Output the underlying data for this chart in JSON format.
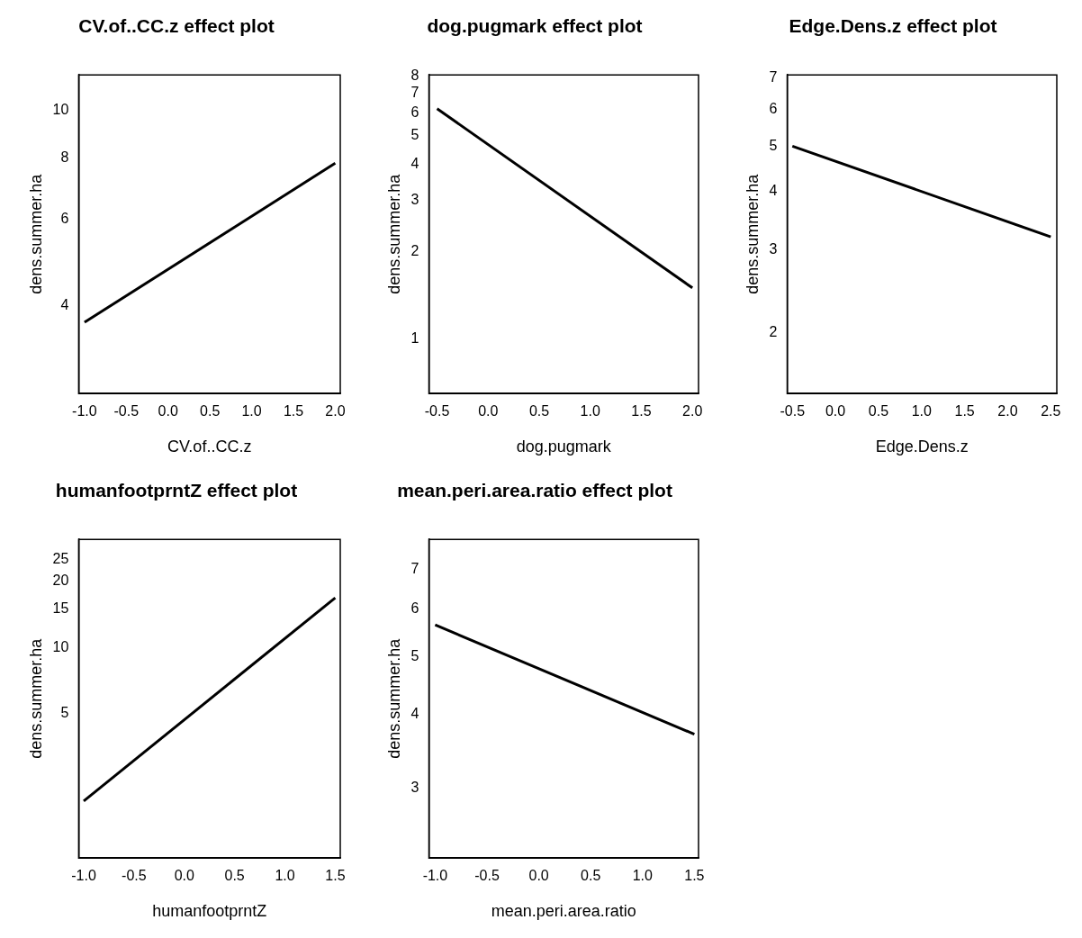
{
  "chart_data": [
    {
      "type": "line",
      "title": "CV.of..CC.z effect plot",
      "xlabel": "CV.of..CC.z",
      "ylabel": "dens.summer.ha",
      "log": "y",
      "marker": "none",
      "x": [
        -1,
        2
      ],
      "values": [
        3.7,
        7.8
      ],
      "color": "#000000",
      "xlim": [
        -1.07,
        2.06
      ],
      "ylim": [
        2.65,
        11.8
      ],
      "xticks": [
        {
          "value": -1,
          "label": "-1.0"
        },
        -0.5,
        {
          "value": 0,
          "label": "0.0"
        },
        0.5,
        {
          "value": 1,
          "label": "1.0"
        },
        1.5,
        {
          "value": 2,
          "label": "2.0"
        }
      ],
      "yticks": [
        4,
        6,
        8,
        10
      ]
    },
    {
      "type": "line",
      "title": "dog.pugmark effect plot",
      "xlabel": "dog.pugmark",
      "ylabel": "dens.summer.ha",
      "log": "y",
      "marker": "none",
      "x": [
        -0.5,
        2
      ],
      "values": [
        6.2,
        1.5
      ],
      "color": "#000000",
      "xlim": [
        -0.58,
        2.06
      ],
      "ylim": [
        0.65,
        8.1
      ],
      "xticks": [
        -0.5,
        {
          "value": 0,
          "label": "0.0"
        },
        0.5,
        {
          "value": 1,
          "label": "1.0"
        },
        1.5,
        {
          "value": 2,
          "label": "2.0"
        }
      ],
      "yticks": [
        1,
        2,
        3,
        4,
        5,
        6,
        7,
        8
      ]
    },
    {
      "type": "line",
      "title": "Edge.Dens.z effect plot",
      "xlabel": "Edge.Dens.z",
      "ylabel": "dens.summer.ha",
      "log": "y",
      "marker": "none",
      "x": [
        -0.5,
        2.5
      ],
      "values": [
        5.0,
        3.2
      ],
      "color": "#000000",
      "xlim": [
        -0.56,
        2.57
      ],
      "ylim": [
        1.48,
        7.1
      ],
      "xticks": [
        -0.5,
        {
          "value": 0,
          "label": "0.0"
        },
        0.5,
        {
          "value": 1,
          "label": "1.0"
        },
        1.5,
        {
          "value": 2,
          "label": "2.0"
        },
        2.5
      ],
      "yticks": [
        2,
        3,
        4,
        5,
        6,
        7
      ]
    },
    {
      "type": "line",
      "title": "humanfootprntZ effect plot",
      "xlabel": "humanfootprntZ",
      "ylabel": "dens.summer.ha",
      "log": "y",
      "marker": "none",
      "x": [
        -1,
        1.5
      ],
      "values": [
        2.0,
        16.8
      ],
      "color": "#000000",
      "xlim": [
        -1.05,
        1.55
      ],
      "ylim": [
        1.1,
        31
      ],
      "xticks": [
        {
          "value": -1,
          "label": "-1.0"
        },
        -0.5,
        {
          "value": 0,
          "label": "0.0"
        },
        0.5,
        {
          "value": 1,
          "label": "1.0"
        },
        1.5
      ],
      "yticks": [
        5,
        10,
        15,
        20,
        25
      ]
    },
    {
      "type": "line",
      "title": "mean.peri.area.ratio effect plot",
      "xlabel": "mean.peri.area.ratio",
      "ylabel": "dens.summer.ha",
      "log": "y",
      "marker": "none",
      "x": [
        -1,
        1.5
      ],
      "values": [
        5.65,
        3.7
      ],
      "color": "#000000",
      "xlim": [
        -1.06,
        1.54
      ],
      "ylim": [
        2.29,
        7.87
      ],
      "xticks": [
        {
          "value": -1,
          "label": "-1.0"
        },
        -0.5,
        {
          "value": 0,
          "label": "0.0"
        },
        0.5,
        {
          "value": 1,
          "label": "1.0"
        },
        1.5
      ],
      "yticks": [
        3,
        4,
        5,
        6,
        7
      ]
    }
  ]
}
